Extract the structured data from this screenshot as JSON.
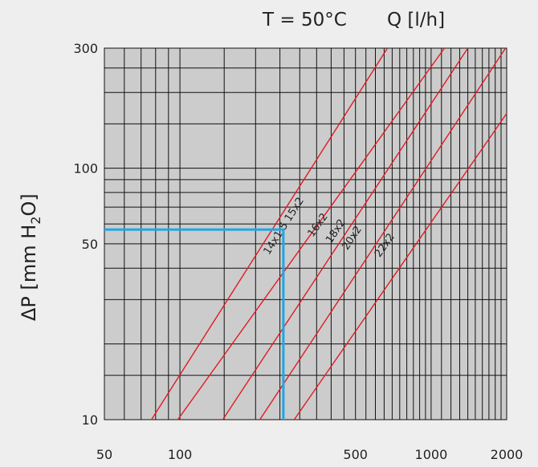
{
  "chart_data": {
    "type": "line",
    "header": {
      "temperature": "T = 50°C",
      "flow": "Q [l/h]"
    },
    "ylabel": {
      "main": "ΔP [mm H",
      "sub": "2",
      "end": "O]"
    },
    "x_scale": "log",
    "y_scale": "log",
    "xlim": [
      50,
      2000
    ],
    "ylim": [
      10,
      300
    ],
    "x_ticks": [
      {
        "value": 50,
        "label": "50"
      },
      {
        "value": 100,
        "label": "100"
      },
      {
        "value": 500,
        "label": "500"
      },
      {
        "value": 1000,
        "label": "1000"
      },
      {
        "value": 2000,
        "label": "2000"
      }
    ],
    "y_ticks": [
      {
        "value": 10,
        "label": "10"
      },
      {
        "value": 50,
        "label": "50"
      },
      {
        "value": 100,
        "label": "100"
      },
      {
        "value": 300,
        "label": "300"
      }
    ],
    "grid": true,
    "colors": {
      "curve": "#e01b24",
      "marker": "#1ea7e6",
      "grid": "#111111",
      "background": "#cccccc"
    },
    "series": [
      {
        "name": "14x1.5 15x2",
        "points": [
          [
            77,
            10
          ],
          [
            670,
            300
          ]
        ]
      },
      {
        "name": "16x2",
        "points": [
          [
            98,
            10
          ],
          [
            1130,
            300
          ]
        ]
      },
      {
        "name": "18x2",
        "points": [
          [
            148,
            10
          ],
          [
            1400,
            300
          ]
        ]
      },
      {
        "name": "20x2",
        "points": [
          [
            208,
            10
          ],
          [
            1980,
            300
          ]
        ]
      },
      {
        "name": "22x2",
        "points": [
          [
            285,
            10
          ],
          [
            2000,
            165
          ]
        ]
      }
    ],
    "reading_example": {
      "x": 258,
      "y": 57
    }
  }
}
